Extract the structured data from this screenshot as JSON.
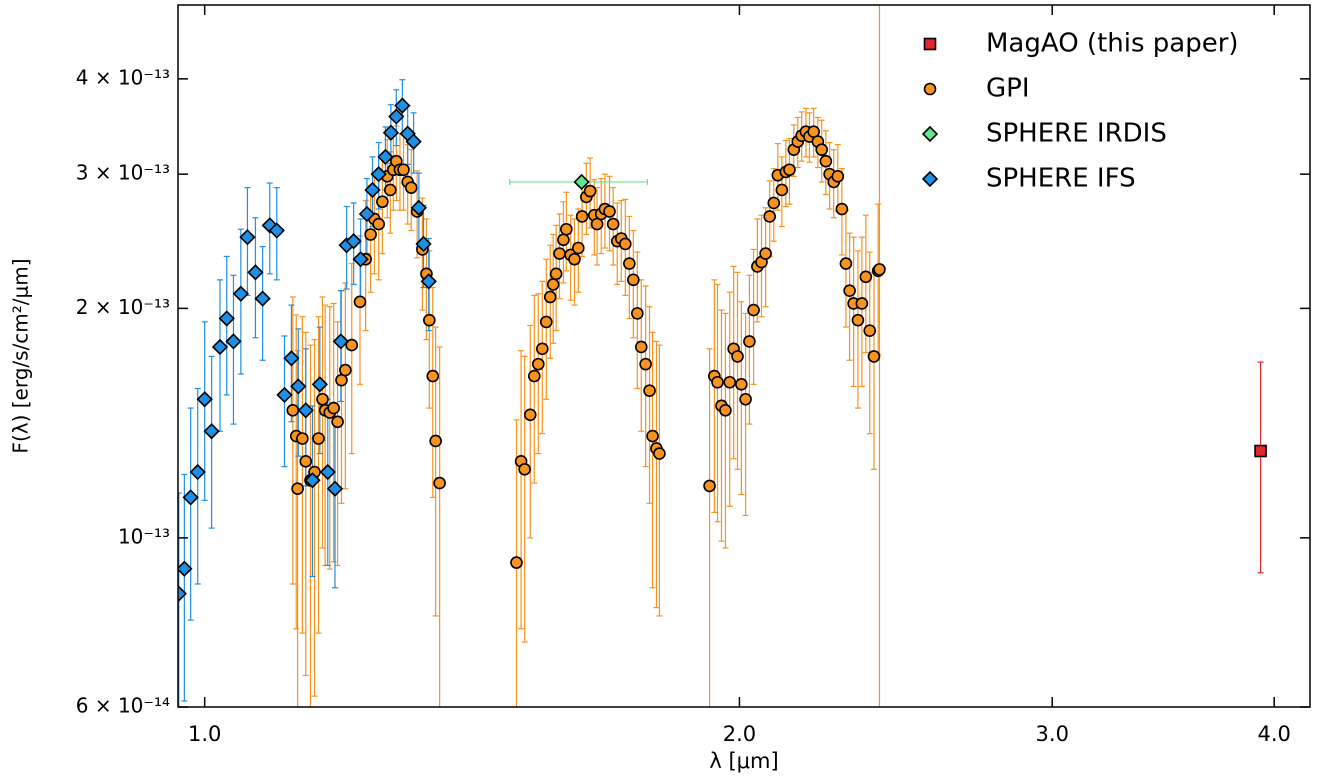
{
  "chart_data": {
    "type": "errorbar-scatter",
    "x_label": "λ [μm]",
    "y_label": "F(λ) [erg/s/cm²/μm]",
    "log_x": true,
    "log_y": true,
    "xlim": [
      0.966,
      4.19
    ],
    "ylim": [
      6e-14,
      5e-13
    ],
    "xticks": [
      {
        "value": 1,
        "label": "1.0"
      },
      {
        "value": 2,
        "label": "2.0"
      },
      {
        "value": 3,
        "label": "3.0"
      },
      {
        "value": 4,
        "label": "4.0"
      }
    ],
    "yticks": [
      {
        "value": 6e-14,
        "label": "6 × 10⁻¹⁴"
      },
      {
        "value": 1e-13,
        "label": "10⁻¹³"
      },
      {
        "value": 2e-13,
        "label": "2 × 10⁻¹³"
      },
      {
        "value": 3e-13,
        "label": "3 × 10⁻¹³"
      },
      {
        "value": 4e-13,
        "label": "4 × 10⁻¹³"
      }
    ],
    "legend": "upper right",
    "series": [
      {
        "name": "MagAO (this paper)",
        "color": "#e3262a",
        "marker": "square",
        "x": [
          3.93
        ],
        "values": [
          1.3e-13
        ],
        "yerr": [
          4e-14
        ],
        "xerr": [
          0.02
        ]
      },
      {
        "name": "GPI",
        "color": "#f7931e",
        "marker": "circle",
        "x": [
          1.121,
          1.126,
          1.128,
          1.135,
          1.14,
          1.147,
          1.153,
          1.159,
          1.165,
          1.169,
          1.176,
          1.182,
          1.188,
          1.194,
          1.2,
          1.21,
          1.223,
          1.232,
          1.24,
          1.246,
          1.253,
          1.259,
          1.267,
          1.272,
          1.277,
          1.282,
          1.288,
          1.294,
          1.301,
          1.307,
          1.317,
          1.326,
          1.333,
          1.338,
          1.344,
          1.349,
          1.356,
          1.498,
          1.507,
          1.514,
          1.525,
          1.533,
          1.541,
          1.549,
          1.557,
          1.565,
          1.571,
          1.577,
          1.584,
          1.592,
          1.598,
          1.607,
          1.615,
          1.623,
          1.631,
          1.64,
          1.648,
          1.657,
          1.663,
          1.672,
          1.68,
          1.69,
          1.698,
          1.707,
          1.716,
          1.725,
          1.734,
          1.743,
          1.752,
          1.761,
          1.771,
          1.78,
          1.787,
          1.796,
          1.803,
          1.924,
          1.936,
          1.944,
          1.954,
          1.964,
          1.975,
          1.985,
          1.995,
          2.005,
          2.016,
          2.026,
          2.037,
          2.047,
          2.058,
          2.069,
          2.08,
          2.091,
          2.102,
          2.113,
          2.124,
          2.134,
          2.146,
          2.157,
          2.168,
          2.18,
          2.19,
          2.202,
          2.214,
          2.225,
          2.237,
          2.248,
          2.26,
          2.272,
          2.284,
          2.296,
          2.307,
          2.319,
          2.332,
          2.344,
          2.356,
          2.368,
          2.381,
          2.394,
          2.398
        ],
        "values": [
          1.47e-13,
          1.36e-13,
          1.16e-13,
          1.35e-13,
          1.26e-13,
          1.19e-13,
          1.22e-13,
          1.35e-13,
          1.52e-13,
          1.47e-13,
          1.46e-13,
          1.48e-13,
          1.42e-13,
          1.61e-13,
          1.66e-13,
          1.79e-13,
          2.04e-13,
          2.32e-13,
          2.5e-13,
          2.62e-13,
          2.58e-13,
          2.76e-13,
          2.98e-13,
          2.86e-13,
          3.04e-13,
          3.12e-13,
          3.04e-13,
          3.04e-13,
          2.93e-13,
          2.88e-13,
          2.68e-13,
          2.39e-13,
          2.22e-13,
          1.93e-13,
          1.63e-13,
          1.34e-13,
          1.18e-13,
          9.28e-14,
          1.26e-13,
          1.23e-13,
          1.45e-13,
          1.63e-13,
          1.69e-13,
          1.77e-13,
          1.92e-13,
          2.07e-13,
          2.15e-13,
          2.22e-13,
          2.36e-13,
          2.46e-13,
          2.54e-13,
          2.35e-13,
          2.32e-13,
          2.4e-13,
          2.64e-13,
          2.8e-13,
          2.85e-13,
          2.65e-13,
          2.58e-13,
          2.66e-13,
          2.7e-13,
          2.68e-13,
          2.58e-13,
          2.45e-13,
          2.47e-13,
          2.43e-13,
          2.29e-13,
          2.18e-13,
          1.97e-13,
          1.78e-13,
          1.69e-13,
          1.56e-13,
          1.36e-13,
          1.31e-13,
          1.29e-13,
          1.17e-13,
          1.63e-13,
          1.6e-13,
          1.49e-13,
          1.47e-13,
          1.6e-13,
          1.77e-13,
          1.73e-13,
          1.59e-13,
          1.52e-13,
          1.81e-13,
          1.99e-13,
          2.27e-13,
          2.3e-13,
          2.36e-13,
          2.64e-13,
          2.75e-13,
          2.99e-13,
          2.86e-13,
          3.02e-13,
          3.04e-13,
          3.23e-13,
          3.31e-13,
          3.37e-13,
          3.41e-13,
          3.36e-13,
          3.41e-13,
          3.31e-13,
          3.23e-13,
          3.12e-13,
          3e-13,
          2.93e-13,
          2.98e-13,
          2.7e-13,
          2.29e-13,
          2.11e-13,
          2.03e-13,
          1.93e-13,
          2.03e-13,
          2.2e-13,
          1.87e-13,
          1.73e-13,
          2.24e-13,
          2.25e-13
        ],
        "yerr": [
          6e-14,
          6e-14,
          6e-14,
          6e-14,
          6e-14,
          6e-14,
          6e-14,
          6e-14,
          5.5e-14,
          5.5e-14,
          5.5e-14,
          5.5e-14,
          5e-14,
          5e-14,
          5e-14,
          5e-14,
          4.5e-14,
          4.5e-14,
          4e-14,
          4e-14,
          4e-14,
          4e-14,
          3.5e-14,
          3.5e-14,
          3.5e-14,
          3.5e-14,
          3.5e-14,
          3.5e-14,
          3.5e-14,
          3.5e-14,
          3.5e-14,
          4e-14,
          4e-14,
          4.5e-14,
          5e-14,
          5.5e-14,
          6e-14,
          5e-14,
          5e-14,
          5e-14,
          4.5e-14,
          4.5e-14,
          4e-14,
          4e-14,
          4e-14,
          3.5e-14,
          3.5e-14,
          3.5e-14,
          3e-14,
          3e-14,
          3e-14,
          3e-14,
          3e-14,
          3e-14,
          3e-14,
          3e-14,
          3e-14,
          3e-14,
          3e-14,
          3e-14,
          3e-14,
          3e-14,
          3e-14,
          3e-14,
          3e-14,
          3.5e-14,
          3.5e-14,
          3.5e-14,
          4e-14,
          4e-14,
          4.5e-14,
          4.5e-14,
          5e-14,
          5e-14,
          5e-14,
          6e-14,
          5.5e-14,
          5.5e-14,
          5e-14,
          5e-14,
          5e-14,
          5e-14,
          5e-14,
          4.5e-14,
          4.5e-14,
          4e-14,
          4e-14,
          3.5e-14,
          3.5e-14,
          3.5e-14,
          3e-14,
          3e-14,
          3e-14,
          3e-14,
          3e-14,
          3e-14,
          2.5e-14,
          2.5e-14,
          2.5e-14,
          2.5e-14,
          2.5e-14,
          2.5e-14,
          2.5e-14,
          3e-14,
          3e-14,
          3e-14,
          3e-14,
          3e-14,
          3.5e-14,
          4e-14,
          4e-14,
          4.5e-14,
          4.5e-14,
          4.5e-14,
          4.5e-14,
          5e-14,
          5e-14,
          5e-14,
          3e-13
        ]
      },
      {
        "name": "SPHERE IRDIS",
        "color": "#5de88e",
        "marker": "diamond",
        "x": [
          1.63
        ],
        "values": [
          2.93e-13
        ],
        "xerr": [
          0.145
        ]
      },
      {
        "name": "SPHERE IFS",
        "color": "#1f8fe6",
        "marker": "diamond",
        "x": [
          0.967,
          0.974,
          0.982,
          0.991,
          1.0,
          1.009,
          1.02,
          1.029,
          1.038,
          1.048,
          1.057,
          1.068,
          1.078,
          1.088,
          1.098,
          1.109,
          1.119,
          1.129,
          1.14,
          1.15,
          1.161,
          1.173,
          1.184,
          1.193,
          1.202,
          1.213,
          1.224,
          1.234,
          1.243,
          1.253,
          1.264,
          1.273,
          1.282,
          1.292,
          1.301,
          1.311,
          1.32,
          1.328,
          1.337
        ],
        "values": [
          8.45e-14,
          9.11e-14,
          1.13e-13,
          1.22e-13,
          1.52e-13,
          1.38e-13,
          1.78e-13,
          1.94e-13,
          1.81e-13,
          2.09e-13,
          2.48e-13,
          2.23e-13,
          2.06e-13,
          2.57e-13,
          2.53e-13,
          1.54e-13,
          1.72e-13,
          1.58e-13,
          1.47e-13,
          1.19e-13,
          1.59e-13,
          1.22e-13,
          1.16e-13,
          1.81e-13,
          2.42e-13,
          2.45e-13,
          2.32e-13,
          2.66e-13,
          2.86e-13,
          3e-13,
          3.16e-13,
          3.4e-13,
          3.57e-13,
          3.69e-13,
          3.39e-13,
          3.31e-13,
          2.71e-13,
          2.43e-13,
          2.17e-13
        ],
        "yerr": [
          3e-14,
          3e-14,
          3.5e-14,
          3.5e-14,
          4e-14,
          3.5e-14,
          4e-14,
          4e-14,
          4e-14,
          4.5e-14,
          4e-14,
          4e-14,
          3.5e-14,
          3.5e-14,
          3.5e-14,
          3e-14,
          3e-14,
          3e-14,
          3e-14,
          3e-14,
          3e-14,
          3e-14,
          3e-14,
          3e-14,
          3e-14,
          3e-14,
          3e-14,
          3e-14,
          3e-14,
          3e-14,
          3e-14,
          3e-14,
          3e-14,
          3e-14,
          3e-14,
          3e-14,
          3e-14,
          3e-14,
          3e-14
        ]
      }
    ]
  }
}
